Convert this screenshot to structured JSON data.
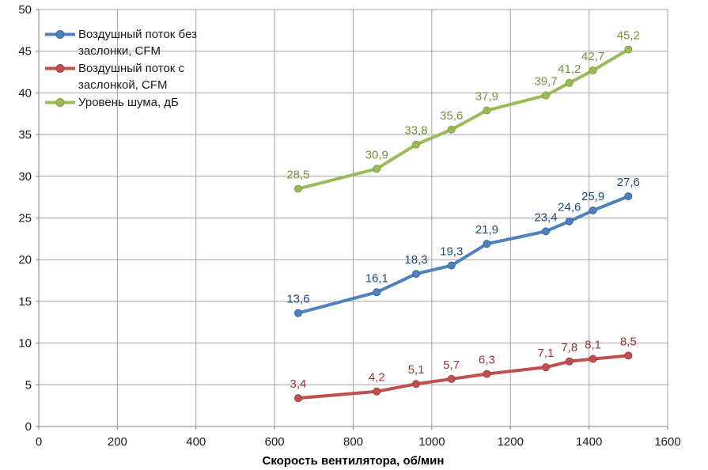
{
  "chart_data": {
    "type": "line",
    "title": "",
    "xlabel": "Скорость вентилятора, об/мин",
    "ylabel": "",
    "xlim": [
      0,
      1600
    ],
    "ylim": [
      0,
      50
    ],
    "x_ticks": [
      0,
      200,
      400,
      600,
      800,
      1000,
      1200,
      1400,
      1600
    ],
    "y_ticks": [
      0,
      5,
      10,
      15,
      20,
      25,
      30,
      35,
      40,
      45,
      50
    ],
    "grid": "both",
    "legend_position": "top-left-inside",
    "decimal_separator": ",",
    "x": [
      660,
      860,
      960,
      1050,
      1140,
      1290,
      1350,
      1410,
      1500
    ],
    "series": [
      {
        "name": "Воздушный поток без заслонки, CFM",
        "values": [
          13.6,
          16.1,
          18.3,
          19.3,
          21.9,
          23.4,
          24.6,
          25.9,
          27.6
        ],
        "color": "#4F81BD",
        "marker_stroke": "#3A679C",
        "label_color": "#1F497D"
      },
      {
        "name": "Воздушный поток с заслонкой, CFM",
        "values": [
          3.4,
          4.2,
          5.1,
          5.7,
          6.3,
          7.1,
          7.8,
          8.1,
          8.5
        ],
        "color": "#C0504D",
        "marker_stroke": "#9E403E",
        "label_color": "#943634"
      },
      {
        "name": "Уровень шума, дБ",
        "values": [
          28.5,
          30.9,
          33.8,
          35.6,
          37.9,
          39.7,
          41.2,
          42.7,
          45.2
        ],
        "color": "#9BBB59",
        "marker_stroke": "#7EA13E",
        "label_color": "#76923C"
      }
    ],
    "colors": {
      "grid": "#A3A3A3",
      "axis": "#7F7F7F",
      "tick_text": "#1a1a1a",
      "axis_title_text": "#000000",
      "background": "#ffffff"
    }
  }
}
